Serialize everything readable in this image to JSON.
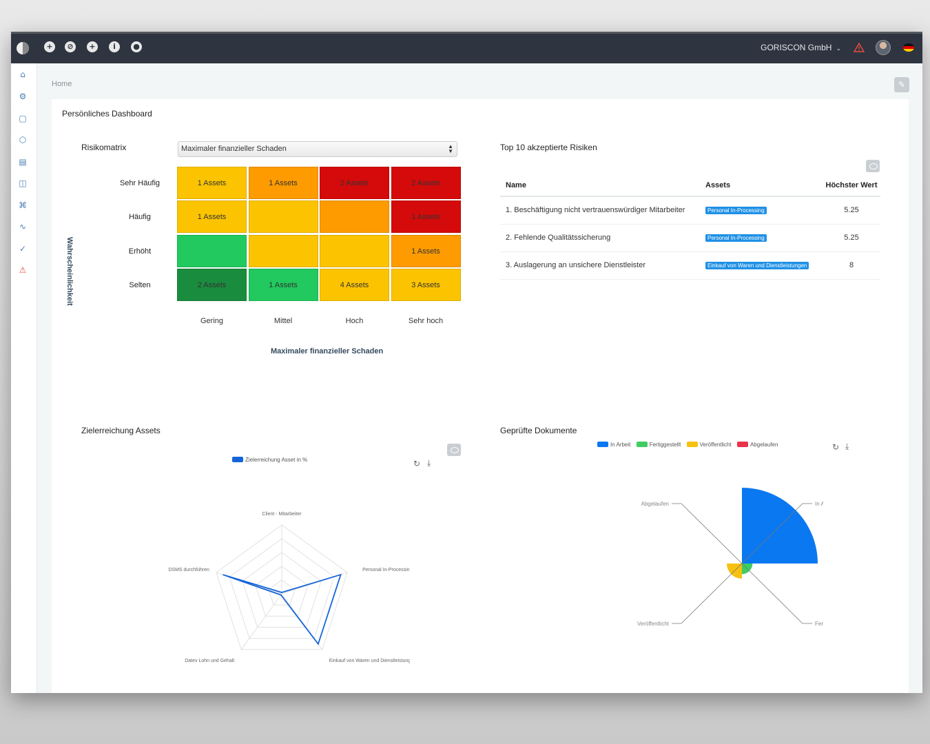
{
  "topbar": {
    "company": "GORISCON GmbH",
    "company_chevron": "⌄",
    "left_icons": [
      "add-icon",
      "compass-icon",
      "plus-circle-icon",
      "info-icon",
      "user-icon"
    ],
    "warn_color": "#e74c3c"
  },
  "sidebar": {
    "icons": [
      "home-icon",
      "settings-icon",
      "lock-icon",
      "box-icon",
      "document-icon",
      "book-icon",
      "command-icon",
      "activity-icon",
      "check-circle-icon",
      "alert-icon"
    ]
  },
  "breadcrumb": "Home",
  "dashboard_title": "Persönliches Dashboard",
  "risk_matrix": {
    "title": "Risikomatrix",
    "select_value": "Maximaler finanzieller Schaden",
    "y_title": "Wahrscheinlichkeit",
    "x_title": "Maximaler finanzieller Schaden",
    "rows": [
      "Sehr Häufig",
      "Häufig",
      "Erhöht",
      "Selten"
    ],
    "cols": [
      "Gering",
      "Mittel",
      "Hoch",
      "Sehr hoch"
    ],
    "cells": [
      [
        {
          "text": "1 Assets",
          "color": "#fcc400"
        },
        {
          "text": "1 Assets",
          "color": "#fd9b00"
        },
        {
          "text": "2 Assets",
          "color": "#d50a0a"
        },
        {
          "text": "2 Assets",
          "color": "#d50a0a"
        }
      ],
      [
        {
          "text": "1 Assets",
          "color": "#fcc400"
        },
        {
          "text": "",
          "color": "#fcc400"
        },
        {
          "text": "",
          "color": "#fd9b00"
        },
        {
          "text": "1 Assets",
          "color": "#d50a0a"
        }
      ],
      [
        {
          "text": "",
          "color": "#21c95e"
        },
        {
          "text": "",
          "color": "#fcc400"
        },
        {
          "text": "",
          "color": "#fcc400"
        },
        {
          "text": "1 Assets",
          "color": "#fd9b00"
        }
      ],
      [
        {
          "text": "2 Assets",
          "color": "#1a8c3e"
        },
        {
          "text": "1 Assets",
          "color": "#21c95e"
        },
        {
          "text": "4 Assets",
          "color": "#fcc400"
        },
        {
          "text": "3 Assets",
          "color": "#fcc400"
        }
      ]
    ]
  },
  "top_risks": {
    "title": "Top 10 akzeptierte Risiken",
    "headers": [
      "Name",
      "Assets",
      "Höchster Wert"
    ],
    "rows": [
      {
        "name": "1. Beschäftigung nicht vertrauenswürdiger Mitarbeiter",
        "asset": "Personal In-Processing",
        "value": "5.25"
      },
      {
        "name": "2. Fehlende Qualitätssicherung",
        "asset": "Personal In-Processing",
        "value": "5.25"
      },
      {
        "name": "3. Auslagerung an unsichere Dienstleister",
        "asset": "Einkauf von Waren und Dienstleistungen",
        "value": "8"
      }
    ]
  },
  "radar": {
    "title": "Zielerreichung Assets",
    "legend": "Zielerreichung Asset in %",
    "color": "#1565d8"
  },
  "pie": {
    "title": "Geprüfte Dokumente",
    "legend_labels": [
      "In Arbeit",
      "Fertiggestellt",
      "Veröffentlicht",
      "Abgelaufen"
    ],
    "callout_labels": [
      "Abgelaufen",
      "In Arbeit",
      "Veröffentlicht",
      "Fertiggestellt"
    ]
  },
  "chart_data": [
    {
      "type": "radar",
      "series": [
        {
          "name": "Zielerreichung Asset in %",
          "values": [
            0,
            90,
            90,
            0,
            90
          ]
        }
      ],
      "categories": [
        "Client - Mitarbeiter",
        "Personal In-Processing",
        "Einkauf von Waren und Dienstleistungen",
        "Datev Lohn und Gehalt",
        "DSMS durchführen"
      ],
      "colors": [
        "#1565d8"
      ]
    },
    {
      "type": "pie",
      "categories": [
        "In Arbeit",
        "Fertiggestellt",
        "Veröffentlicht",
        "Abgelaufen"
      ],
      "values": [
        100,
        14,
        20,
        0
      ],
      "colors": [
        "#0a78f0",
        "#3fcd62",
        "#f6c110",
        "#e8334a"
      ]
    }
  ]
}
